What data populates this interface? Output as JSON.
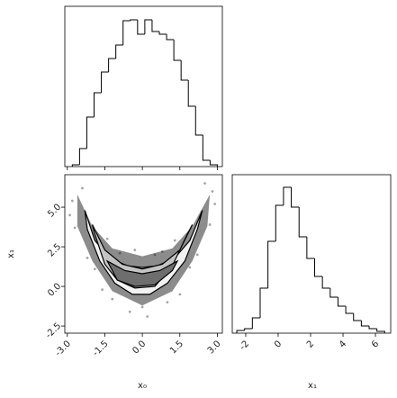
{
  "chart_data": [
    {
      "type": "histogram",
      "bins": [
        -2.8,
        -2.51,
        -2.22,
        -1.93,
        -1.64,
        -1.35,
        -1.06,
        -0.77,
        -0.48,
        -0.19,
        0.1,
        0.39,
        0.68,
        0.97,
        1.26,
        1.55,
        1.84,
        2.13,
        2.42,
        2.71,
        3.0
      ],
      "values": [
        2,
        20,
        55,
        82,
        105,
        120,
        135,
        162,
        163,
        147,
        163,
        150,
        147,
        141,
        118,
        96,
        67,
        35,
        7,
        2
      ],
      "xlim": [
        -3.1,
        3.2
      ],
      "ylim": [
        0,
        178
      ],
      "color": "#000000"
    },
    {
      "type": "scatter",
      "xlabel": "x₀",
      "ylabel": "x₁",
      "xlim": [
        -3.1,
        3.2
      ],
      "ylim": [
        -2.95,
        7.05
      ],
      "xticks": [
        {
          "value": -3,
          "label": "-3.0"
        },
        -1.5,
        {
          "value": 0,
          "label": "0.0"
        },
        1.5,
        {
          "value": 3,
          "label": "3.0"
        }
      ],
      "yticks": [
        -2.5,
        {
          "value": 0,
          "label": "0.0"
        },
        2.5,
        {
          "value": 5,
          "label": "5.0"
        }
      ],
      "color": "#000000",
      "x": [
        -2.9,
        2.9,
        0.2,
        -0.5,
        1.5,
        -1.6,
        2.5,
        -2.4,
        0.8,
        -0.9,
        -2.7,
        2.7,
        0.0,
        1.0,
        -1.2,
        2.2,
        -2.2,
        0.5,
        -0.3,
        1.9,
        -1.9,
        2.8,
        -2.8,
        1.3,
        -1.4
      ],
      "y": [
        4.5,
        5.2,
        -1.9,
        -1.6,
        -0.5,
        -0.2,
        6.5,
        6.2,
        2.2,
        2.1,
        3.7,
        3.9,
        -1.3,
        -1.0,
        -0.8,
        2.0,
        1.8,
        2.0,
        2.3,
        1.2,
        1.1,
        6.0,
        5.4,
        2.9,
        3.0
      ],
      "contours": [
        {
          "color": "#8c8c8c",
          "x": [
            -2.6,
            -2.0,
            -1.2,
            0,
            1.2,
            2.0,
            2.7,
            2.6,
            2.0,
            1.2,
            0,
            -1.2,
            -2.0,
            -2.6
          ],
          "y": [
            5.8,
            3.8,
            2.4,
            1.9,
            2.4,
            3.8,
            5.8,
            3.8,
            1.6,
            -0.3,
            -1.2,
            -0.3,
            1.6,
            3.8
          ]
        },
        {
          "color": "#f2f2f2",
          "x": [
            -2.3,
            -1.9,
            -1.3,
            -0.6,
            0,
            0.6,
            1.3,
            1.9,
            2.4,
            2.2,
            1.7,
            1.0,
            0.3,
            -0.4,
            -1.1,
            -1.7,
            -2.2
          ],
          "y": [
            4.8,
            2.9,
            1.8,
            1.3,
            1.2,
            1.3,
            1.8,
            2.9,
            4.8,
            3.6,
            1.6,
            0.2,
            -0.5,
            -0.5,
            0.2,
            1.6,
            3.6
          ]
        },
        {
          "color": "#c4c4c4",
          "x": [
            -2.0,
            -1.5,
            -0.8,
            0,
            0.8,
            1.5,
            2.0,
            1.8,
            1.2,
            0.5,
            -0.3,
            -1.0,
            -1.5,
            -1.9
          ],
          "y": [
            3.9,
            2.3,
            1.4,
            1.1,
            1.4,
            2.3,
            3.9,
            3.3,
            1.3,
            0.0,
            -0.1,
            0.4,
            1.4,
            3.3
          ]
        },
        {
          "color": "#6e6e6e",
          "x": [
            -1.4,
            -0.7,
            0,
            0.7,
            1.4,
            1.2,
            0.5,
            -0.3,
            -1.0
          ],
          "y": [
            1.6,
            1.0,
            0.8,
            1.0,
            1.6,
            1.0,
            0.1,
            0.0,
            0.4
          ]
        }
      ]
    },
    {
      "type": "histogram",
      "xlabel": "x₁",
      "bins": [
        -2.55,
        -2.07,
        -1.59,
        -1.11,
        -0.63,
        -0.15,
        0.33,
        0.81,
        1.29,
        1.77,
        2.25,
        2.73,
        3.21,
        3.69,
        4.17,
        4.65,
        5.13,
        5.61,
        6.09,
        6.57
      ],
      "values": [
        3,
        5,
        17,
        50,
        102,
        142,
        162,
        140,
        107,
        83,
        63,
        50,
        40,
        30,
        22,
        14,
        8,
        5,
        2
      ],
      "xlim": [
        -2.83,
        6.94
      ],
      "ylim": [
        0,
        176
      ],
      "xticks": [
        -2,
        0,
        2,
        4,
        6
      ],
      "color": "#000000"
    }
  ]
}
